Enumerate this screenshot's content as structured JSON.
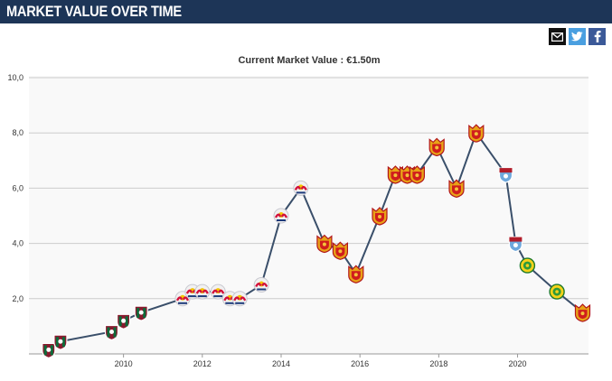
{
  "header": {
    "title": "MARKET VALUE OVER TIME"
  },
  "share": {
    "mail_icon": "mail-icon",
    "twitter_icon": "twitter-icon",
    "facebook_icon": "facebook-icon"
  },
  "colors": {
    "header_bg": "#1d3557",
    "line": "#3a4f6a",
    "grid": "#cccccc",
    "plot_bg": "#f9f9f9"
  },
  "chart_data": {
    "type": "line",
    "title": "Current Market Value : €1.50m",
    "xlabel": "",
    "ylabel": "",
    "xlim": [
      2007.6,
      2021.8
    ],
    "ylim": [
      0,
      10
    ],
    "y_ticks": [
      "2,0",
      "4,0",
      "6,0",
      "8,0",
      "10,0"
    ],
    "x_ticks": [
      "2010",
      "2012",
      "2014",
      "2016",
      "2018",
      "2020"
    ],
    "grid": "horizontal",
    "legend": "none",
    "series": [
      {
        "points": [
          {
            "x": 2008.1,
            "y": 0.15,
            "club": "fluminense"
          },
          {
            "x": 2008.4,
            "y": 0.45,
            "club": "fluminense"
          },
          {
            "x": 2009.7,
            "y": 0.8,
            "club": "fluminense"
          },
          {
            "x": 2010.0,
            "y": 1.2,
            "club": "fluminense"
          },
          {
            "x": 2010.45,
            "y": 1.5,
            "club": "fluminense"
          },
          {
            "x": 2011.5,
            "y": 2.0,
            "club": "redbull"
          },
          {
            "x": 2011.75,
            "y": 2.25,
            "club": "redbull"
          },
          {
            "x": 2012.0,
            "y": 2.25,
            "club": "redbull"
          },
          {
            "x": 2012.4,
            "y": 2.25,
            "club": "redbull"
          },
          {
            "x": 2012.7,
            "y": 2.0,
            "club": "redbull"
          },
          {
            "x": 2012.95,
            "y": 2.0,
            "club": "redbull"
          },
          {
            "x": 2013.5,
            "y": 2.5,
            "club": "redbull"
          },
          {
            "x": 2014.0,
            "y": 5.0,
            "club": "redbull"
          },
          {
            "x": 2014.5,
            "y": 6.0,
            "club": "redbull"
          },
          {
            "x": 2015.1,
            "y": 4.0,
            "club": "guangzhou"
          },
          {
            "x": 2015.5,
            "y": 3.75,
            "club": "guangzhou"
          },
          {
            "x": 2015.9,
            "y": 2.9,
            "club": "guangzhou"
          },
          {
            "x": 2016.5,
            "y": 5.0,
            "club": "guangzhou"
          },
          {
            "x": 2016.9,
            "y": 6.5,
            "club": "guangzhou"
          },
          {
            "x": 2017.2,
            "y": 6.5,
            "club": "guangzhou"
          },
          {
            "x": 2017.45,
            "y": 6.5,
            "club": "guangzhou"
          },
          {
            "x": 2017.95,
            "y": 7.5,
            "club": "guangzhou"
          },
          {
            "x": 2018.45,
            "y": 6.0,
            "club": "guangzhou"
          },
          {
            "x": 2018.95,
            "y": 8.0,
            "club": "guangzhou"
          },
          {
            "x": 2019.7,
            "y": 6.5,
            "club": "shield"
          },
          {
            "x": 2019.95,
            "y": 4.0,
            "club": "shield"
          },
          {
            "x": 2020.25,
            "y": 3.2,
            "club": "green"
          },
          {
            "x": 2021.0,
            "y": 2.25,
            "club": "green"
          },
          {
            "x": 2021.65,
            "y": 1.5,
            "club": "guangzhou"
          }
        ]
      }
    ]
  }
}
